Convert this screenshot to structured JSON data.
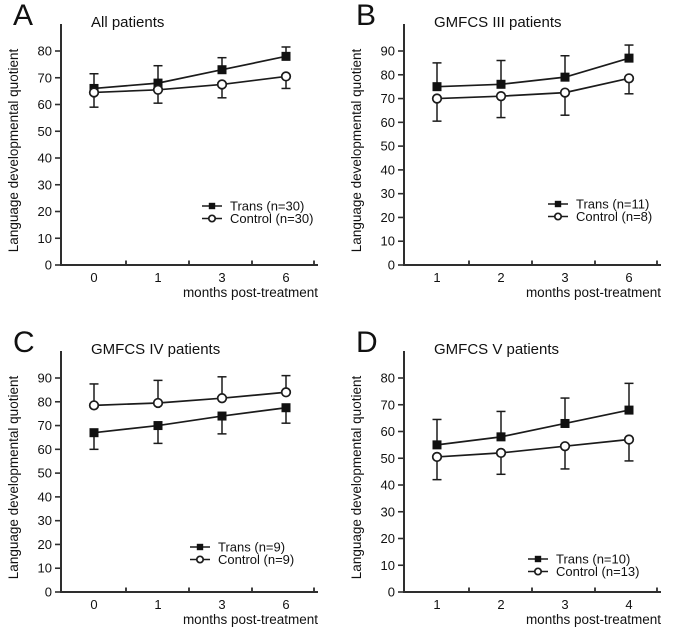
{
  "figure": {
    "background": "#ffffff",
    "axis_color": "#2e2e2e",
    "line_color": "#1b1b1b",
    "text_color": "#111111",
    "marker_fill": "#111111",
    "open_marker_fill": "#ffffff"
  },
  "chart_data": [
    {
      "type": "line",
      "panel_letter": "A",
      "title": "All patients",
      "xlabel": "months post-treatment",
      "ylabel": "Language developmental quotient",
      "x_categories": [
        "0",
        "1",
        "3",
        "6"
      ],
      "ylim": [
        0,
        80
      ],
      "y_ticks": [
        0,
        10,
        20,
        30,
        40,
        50,
        60,
        70,
        80
      ],
      "grid": false,
      "legend_position": "lower-right",
      "series": [
        {
          "name": "Trans (n=30)",
          "marker": "filled-square",
          "error_bar_direction": "up",
          "values": [
            66,
            68,
            73,
            78
          ],
          "errors": [
            5.5,
            6.5,
            4.5,
            3.5
          ]
        },
        {
          "name": "Control (n=30)",
          "marker": "open-circle",
          "error_bar_direction": "down",
          "values": [
            64.5,
            65.5,
            67.5,
            70.5
          ],
          "errors": [
            5.5,
            5,
            5,
            4.5
          ]
        }
      ]
    },
    {
      "type": "line",
      "panel_letter": "B",
      "title": "GMFCS III patients",
      "xlabel": "months post-treatment",
      "ylabel": "Language developmental quotient",
      "x_categories": [
        "1",
        "2",
        "3",
        "6"
      ],
      "ylim": [
        0,
        90
      ],
      "y_ticks": [
        0,
        10,
        20,
        30,
        40,
        50,
        60,
        70,
        80,
        90
      ],
      "grid": false,
      "legend_position": "lower-right",
      "series": [
        {
          "name": "Trans (n=11)",
          "marker": "filled-square",
          "error_bar_direction": "up",
          "values": [
            75,
            76,
            79,
            87
          ],
          "errors": [
            10,
            10,
            9,
            5.5
          ]
        },
        {
          "name": "Control (n=8)",
          "marker": "open-circle",
          "error_bar_direction": "down",
          "values": [
            70,
            71,
            72.5,
            78.5
          ],
          "errors": [
            9.5,
            9,
            9.5,
            6.5
          ]
        }
      ]
    },
    {
      "type": "line",
      "panel_letter": "C",
      "title": "GMFCS IV patients",
      "xlabel": "months post-treatment",
      "ylabel": "Language developmental quotient",
      "x_categories": [
        "0",
        "1",
        "3",
        "6"
      ],
      "ylim": [
        0,
        90
      ],
      "y_ticks": [
        0,
        10,
        20,
        30,
        40,
        50,
        60,
        70,
        80,
        90
      ],
      "grid": false,
      "legend_position": "lower-right",
      "series": [
        {
          "name": "Trans (n=9)",
          "marker": "filled-square",
          "error_bar_direction": "down",
          "values": [
            67,
            70,
            74,
            77.5
          ],
          "errors": [
            7,
            7.5,
            7.5,
            6.5
          ]
        },
        {
          "name": "Control (n=9)",
          "marker": "open-circle",
          "error_bar_direction": "up",
          "values": [
            78.5,
            79.5,
            81.5,
            84
          ],
          "errors": [
            9,
            9.5,
            9,
            7
          ]
        }
      ]
    },
    {
      "type": "line",
      "panel_letter": "D",
      "title": "GMFCS V patients",
      "xlabel": "months post-treatment",
      "ylabel": "Language developmental quotient",
      "x_categories": [
        "1",
        "2",
        "3",
        "4"
      ],
      "ylim": [
        0,
        80
      ],
      "y_ticks": [
        0,
        10,
        20,
        30,
        40,
        50,
        60,
        70,
        80
      ],
      "grid": false,
      "legend_position": "lower-right",
      "series": [
        {
          "name": "Trans (n=10)",
          "marker": "filled-square",
          "error_bar_direction": "up",
          "values": [
            55,
            58,
            63,
            68
          ],
          "errors": [
            9.5,
            9.5,
            9.5,
            10
          ]
        },
        {
          "name": "Control (n=13)",
          "marker": "open-circle",
          "error_bar_direction": "down",
          "values": [
            50.5,
            52,
            54.5,
            57
          ],
          "errors": [
            8.5,
            8,
            8.5,
            8
          ]
        }
      ]
    }
  ]
}
